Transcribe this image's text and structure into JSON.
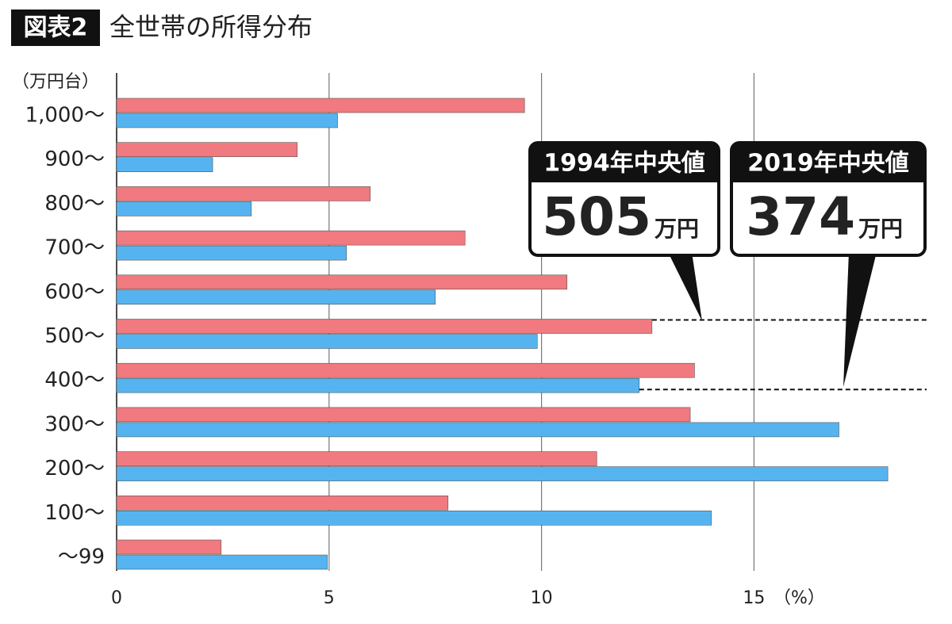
{
  "chart_data": {
    "type": "bar",
    "orientation": "horizontal",
    "figure_label": "図表2",
    "title": "全世帯の所得分布",
    "y_unit_label": "（万円台）",
    "x_unit_label": "（%）",
    "categories": [
      "1,000〜",
      "900〜",
      "800〜",
      "700〜",
      "600〜",
      "500〜",
      "400〜",
      "300〜",
      "200〜",
      "100〜",
      "〜99"
    ],
    "series": [
      {
        "color": "#f07a7f",
        "values": [
          9.6,
          4.25,
          5.97,
          8.2,
          10.6,
          12.6,
          13.6,
          13.5,
          11.3,
          7.8,
          2.46
        ]
      },
      {
        "color": "#55b4f0",
        "values": [
          5.2,
          2.26,
          3.17,
          5.41,
          7.5,
          9.9,
          12.3,
          17.0,
          18.15,
          14.0,
          4.96
        ]
      }
    ],
    "xlim": [
      0,
      19.1
    ],
    "xticks": [
      0,
      5,
      10,
      15
    ],
    "grid": true,
    "annotations": [
      {
        "header": "1994年中央値",
        "value": "505",
        "unit": "万円"
      },
      {
        "header": "2019年中央値",
        "value": "374",
        "unit": "万円"
      }
    ]
  }
}
